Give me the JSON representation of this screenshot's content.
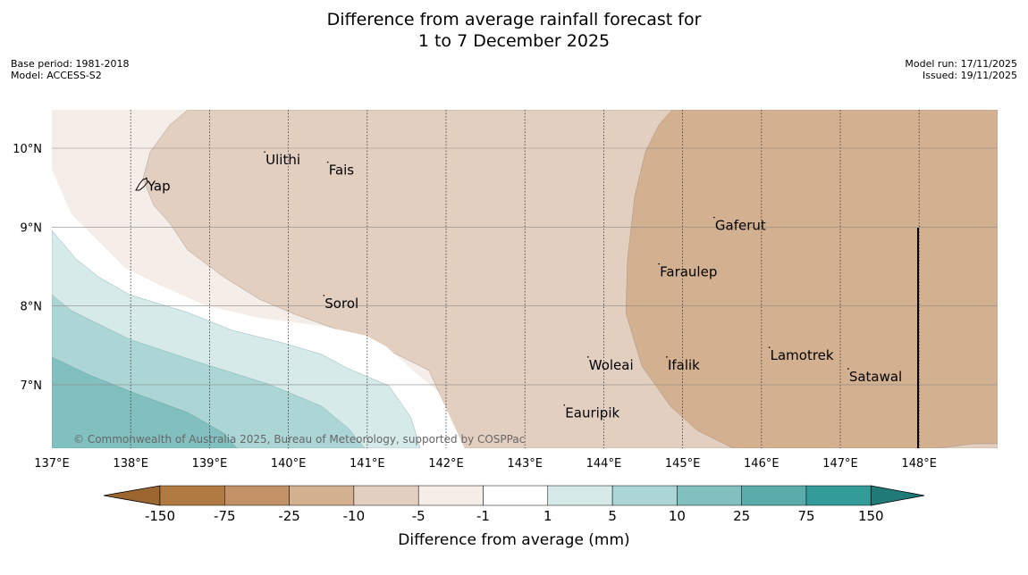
{
  "header": {
    "title_line1": "Difference from average rainfall forecast for",
    "title_line2": "1 to 7 December 2025",
    "base_period": "Base period: 1981-2018",
    "model": "Model: ACCESS-S2",
    "model_run": "Model run: 17/11/2025",
    "issued": "Issued: 19/11/2025"
  },
  "map": {
    "lon_ticks": [
      "137°E",
      "138°E",
      "139°E",
      "140°E",
      "141°E",
      "142°E",
      "143°E",
      "144°E",
      "145°E",
      "146°E",
      "147°E",
      "148°E"
    ],
    "lat_ticks": [
      "10°N",
      "9°N",
      "8°N",
      "7°N"
    ],
    "places": [
      {
        "name": "Ulithi",
        "lon": 139.7,
        "lat": 9.85
      },
      {
        "name": "Fais",
        "lon": 140.5,
        "lat": 9.72
      },
      {
        "name": "Yap",
        "lon": 138.2,
        "lat": 9.52
      },
      {
        "name": "Gaferut",
        "lon": 145.4,
        "lat": 9.02
      },
      {
        "name": "Faraulep",
        "lon": 144.7,
        "lat": 8.43
      },
      {
        "name": "Sorol",
        "lon": 140.45,
        "lat": 8.03
      },
      {
        "name": "Lamotrek",
        "lon": 146.1,
        "lat": 7.37
      },
      {
        "name": "Woleai",
        "lon": 143.8,
        "lat": 7.25
      },
      {
        "name": "Ifalik",
        "lon": 144.8,
        "lat": 7.25
      },
      {
        "name": "Satawal",
        "lon": 147.1,
        "lat": 7.1
      },
      {
        "name": "Eauripik",
        "lon": 143.5,
        "lat": 6.64
      }
    ],
    "copyright": "© Commonwealth of Australia 2025, Bureau of Meteorology, supported by COSPPac"
  },
  "colorbar": {
    "title": "Difference from average (mm)",
    "tick_labels": [
      "-150",
      "-75",
      "-25",
      "-10",
      "-5",
      "-1",
      "1",
      "5",
      "10",
      "25",
      "75",
      "150"
    ],
    "colors": [
      "#9c6631",
      "#b07a42",
      "#c29166",
      "#d3b090",
      "#e2cfbf",
      "#f4ede8",
      "#ffffff",
      "#d5eae9",
      "#acd6d5",
      "#82c0bf",
      "#5aacab",
      "#339b98",
      "#1f7a78"
    ]
  }
}
